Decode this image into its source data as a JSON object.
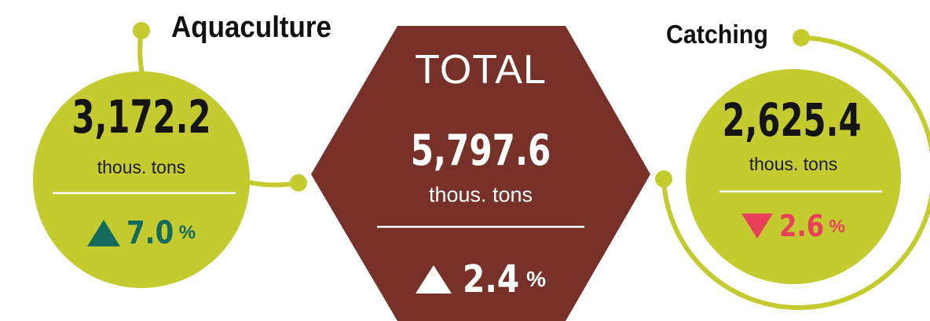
{
  "colors": {
    "lime": "#c3cb2f",
    "brown": "#773129",
    "teal": "#156a5e",
    "red": "#e8405b",
    "text": "#141414",
    "white": "#ffffff"
  },
  "aquaculture": {
    "label": "Aquaculture",
    "value": "3,172.2",
    "unit": "thous. tons",
    "change_direction": "up",
    "change_value": "7.0",
    "change_unit": "%"
  },
  "total": {
    "label": "TOTAL",
    "value": "5,797.6",
    "unit": "thous. tons",
    "change_direction": "up",
    "change_value": "2.4",
    "change_unit": "%"
  },
  "catching": {
    "label": "Catching",
    "value": "2,625.4",
    "unit": "thous. tons",
    "change_direction": "down",
    "change_value": "2.6",
    "change_unit": "%"
  }
}
